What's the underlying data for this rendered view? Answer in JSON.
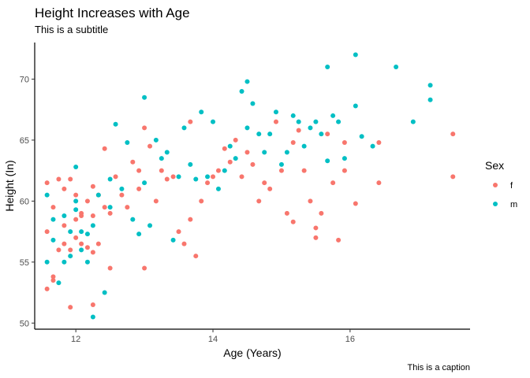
{
  "chart_data": {
    "type": "scatter",
    "title": "Height Increases with Age",
    "subtitle": "This is a subtitle",
    "caption": "This is a caption",
    "xlabel": "Age (Years)",
    "ylabel": "Height (In)",
    "xlim": [
      11.4,
      17.75
    ],
    "ylim": [
      49.5,
      73
    ],
    "xticks": [
      12,
      14,
      16
    ],
    "yticks": [
      50,
      55,
      60,
      65,
      70
    ],
    "grid": false,
    "legend": {
      "title": "Sex",
      "placement": "right"
    },
    "series": [
      {
        "name": "f",
        "color": "#F8766D",
        "points": [
          [
            11.58,
            52.8
          ],
          [
            11.58,
            57.5
          ],
          [
            11.58,
            61.5
          ],
          [
            11.67,
            53.5
          ],
          [
            11.67,
            53.8
          ],
          [
            11.67,
            59.5
          ],
          [
            11.75,
            61.8
          ],
          [
            11.75,
            56.0
          ],
          [
            11.83,
            56.5
          ],
          [
            11.83,
            58.0
          ],
          [
            11.83,
            61.0
          ],
          [
            11.92,
            56.0
          ],
          [
            11.92,
            51.3
          ],
          [
            11.92,
            61.8
          ],
          [
            12.0,
            57.0
          ],
          [
            12.0,
            58.5
          ],
          [
            12.0,
            60.5
          ],
          [
            12.08,
            58.8
          ],
          [
            12.08,
            59.0
          ],
          [
            12.08,
            56.5
          ],
          [
            12.17,
            60.0
          ],
          [
            12.17,
            56.2
          ],
          [
            12.25,
            51.5
          ],
          [
            12.25,
            55.8
          ],
          [
            12.25,
            58.8
          ],
          [
            12.25,
            61.2
          ],
          [
            12.33,
            60.5
          ],
          [
            12.33,
            56.5
          ],
          [
            12.42,
            59.5
          ],
          [
            12.42,
            64.3
          ],
          [
            12.5,
            54.5
          ],
          [
            12.5,
            59.0
          ],
          [
            12.58,
            62.0
          ],
          [
            12.67,
            60.5
          ],
          [
            12.75,
            59.5
          ],
          [
            12.83,
            63.2
          ],
          [
            12.92,
            61.0
          ],
          [
            12.92,
            62.5
          ],
          [
            13.0,
            66.0
          ],
          [
            13.0,
            54.5
          ],
          [
            13.08,
            64.5
          ],
          [
            13.17,
            60.0
          ],
          [
            13.25,
            62.5
          ],
          [
            13.33,
            61.8
          ],
          [
            13.42,
            62.0
          ],
          [
            13.5,
            57.5
          ],
          [
            13.58,
            56.5
          ],
          [
            13.67,
            66.5
          ],
          [
            13.67,
            58.5
          ],
          [
            13.75,
            55.5
          ],
          [
            13.83,
            60.0
          ],
          [
            13.92,
            61.5
          ],
          [
            14.0,
            62.0
          ],
          [
            14.08,
            62.5
          ],
          [
            14.17,
            64.3
          ],
          [
            14.25,
            63.2
          ],
          [
            14.33,
            65.0
          ],
          [
            14.42,
            62.0
          ],
          [
            14.5,
            64.0
          ],
          [
            14.58,
            63.0
          ],
          [
            14.67,
            60.0
          ],
          [
            14.75,
            61.5
          ],
          [
            14.83,
            61.0
          ],
          [
            14.92,
            66.5
          ],
          [
            15.0,
            62.5
          ],
          [
            15.08,
            59.0
          ],
          [
            15.17,
            58.3
          ],
          [
            15.17,
            64.8
          ],
          [
            15.25,
            65.8
          ],
          [
            15.33,
            62.5
          ],
          [
            15.42,
            60.0
          ],
          [
            15.5,
            57.8
          ],
          [
            15.5,
            57.0
          ],
          [
            15.58,
            59.0
          ],
          [
            15.67,
            65.5
          ],
          [
            15.75,
            61.5
          ],
          [
            15.83,
            56.8
          ],
          [
            15.92,
            64.8
          ],
          [
            15.92,
            62.5
          ],
          [
            16.08,
            59.8
          ],
          [
            16.42,
            61.5
          ],
          [
            16.42,
            64.8
          ],
          [
            17.5,
            65.5
          ],
          [
            17.5,
            62.0
          ]
        ]
      },
      {
        "name": "m",
        "color": "#00BFC4",
        "points": [
          [
            11.58,
            55.0
          ],
          [
            11.58,
            60.5
          ],
          [
            11.67,
            56.8
          ],
          [
            11.67,
            58.5
          ],
          [
            11.75,
            53.3
          ],
          [
            11.83,
            55.0
          ],
          [
            11.83,
            58.8
          ],
          [
            11.92,
            57.5
          ],
          [
            11.92,
            55.5
          ],
          [
            12.0,
            62.8
          ],
          [
            12.0,
            60.0
          ],
          [
            12.0,
            59.3
          ],
          [
            12.08,
            57.5
          ],
          [
            12.08,
            56.0
          ],
          [
            12.17,
            55.0
          ],
          [
            12.17,
            57.3
          ],
          [
            12.25,
            50.5
          ],
          [
            12.25,
            58.0
          ],
          [
            12.33,
            60.5
          ],
          [
            12.42,
            52.5
          ],
          [
            12.5,
            59.5
          ],
          [
            12.5,
            61.8
          ],
          [
            12.58,
            66.3
          ],
          [
            12.67,
            61.0
          ],
          [
            12.75,
            64.8
          ],
          [
            12.83,
            58.5
          ],
          [
            12.92,
            57.3
          ],
          [
            13.0,
            68.5
          ],
          [
            13.0,
            61.5
          ],
          [
            13.08,
            58.0
          ],
          [
            13.17,
            65.0
          ],
          [
            13.25,
            63.5
          ],
          [
            13.33,
            64.0
          ],
          [
            13.42,
            56.8
          ],
          [
            13.5,
            62.0
          ],
          [
            13.58,
            66.0
          ],
          [
            13.67,
            63.0
          ],
          [
            13.75,
            61.8
          ],
          [
            13.83,
            67.3
          ],
          [
            13.92,
            62.0
          ],
          [
            14.0,
            66.5
          ],
          [
            14.08,
            61.0
          ],
          [
            14.17,
            62.5
          ],
          [
            14.25,
            64.5
          ],
          [
            14.33,
            63.5
          ],
          [
            14.42,
            69.0
          ],
          [
            14.5,
            69.8
          ],
          [
            14.5,
            66.0
          ],
          [
            14.58,
            68.0
          ],
          [
            14.67,
            65.5
          ],
          [
            14.75,
            64.0
          ],
          [
            14.83,
            65.5
          ],
          [
            14.92,
            67.3
          ],
          [
            15.0,
            63.0
          ],
          [
            15.08,
            64.0
          ],
          [
            15.17,
            67.0
          ],
          [
            15.25,
            66.5
          ],
          [
            15.33,
            64.5
          ],
          [
            15.42,
            66.0
          ],
          [
            15.5,
            66.5
          ],
          [
            15.58,
            65.5
          ],
          [
            15.67,
            71.0
          ],
          [
            15.67,
            63.3
          ],
          [
            15.75,
            67.0
          ],
          [
            15.83,
            66.5
          ],
          [
            15.92,
            63.5
          ],
          [
            16.08,
            72.0
          ],
          [
            16.08,
            67.8
          ],
          [
            16.17,
            65.3
          ],
          [
            16.33,
            64.5
          ],
          [
            16.67,
            71.0
          ],
          [
            16.92,
            66.5
          ],
          [
            17.17,
            69.5
          ],
          [
            17.17,
            68.3
          ]
        ]
      }
    ]
  }
}
